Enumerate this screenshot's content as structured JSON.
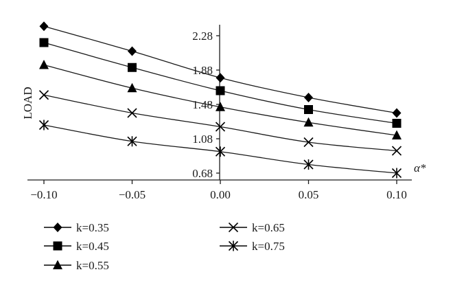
{
  "chart_data": {
    "type": "line",
    "x": [
      -0.1,
      -0.05,
      0.0,
      0.05,
      0.1
    ],
    "x_tick_labels": [
      "−0.10",
      "−0.05",
      "0.00",
      "0.05",
      "0.10"
    ],
    "y_ticks": [
      0.68,
      1.08,
      1.48,
      1.88,
      2.28
    ],
    "y_tick_labels": [
      "0.68",
      "1.08",
      "1.48",
      "1.88",
      "2.28"
    ],
    "ylim": [
      0.68,
      2.28
    ],
    "xlim": [
      -0.1,
      0.1
    ],
    "ylabel": "LOAD",
    "xlabel": "α*",
    "grid": false,
    "legend_position": "bottom",
    "series": [
      {
        "name": "k=0.35",
        "marker": "diamond",
        "values": [
          2.39,
          2.1,
          1.79,
          1.56,
          1.38
        ]
      },
      {
        "name": "k=0.45",
        "marker": "square",
        "values": [
          2.2,
          1.91,
          1.64,
          1.42,
          1.26
        ]
      },
      {
        "name": "k=0.55",
        "marker": "triangle",
        "values": [
          1.94,
          1.67,
          1.45,
          1.27,
          1.12
        ]
      },
      {
        "name": "k=0.65",
        "marker": "x",
        "values": [
          1.59,
          1.38,
          1.22,
          1.04,
          0.94
        ]
      },
      {
        "name": "k=0.75",
        "marker": "asterisk",
        "values": [
          1.24,
          1.05,
          0.93,
          0.78,
          0.68
        ]
      }
    ]
  }
}
